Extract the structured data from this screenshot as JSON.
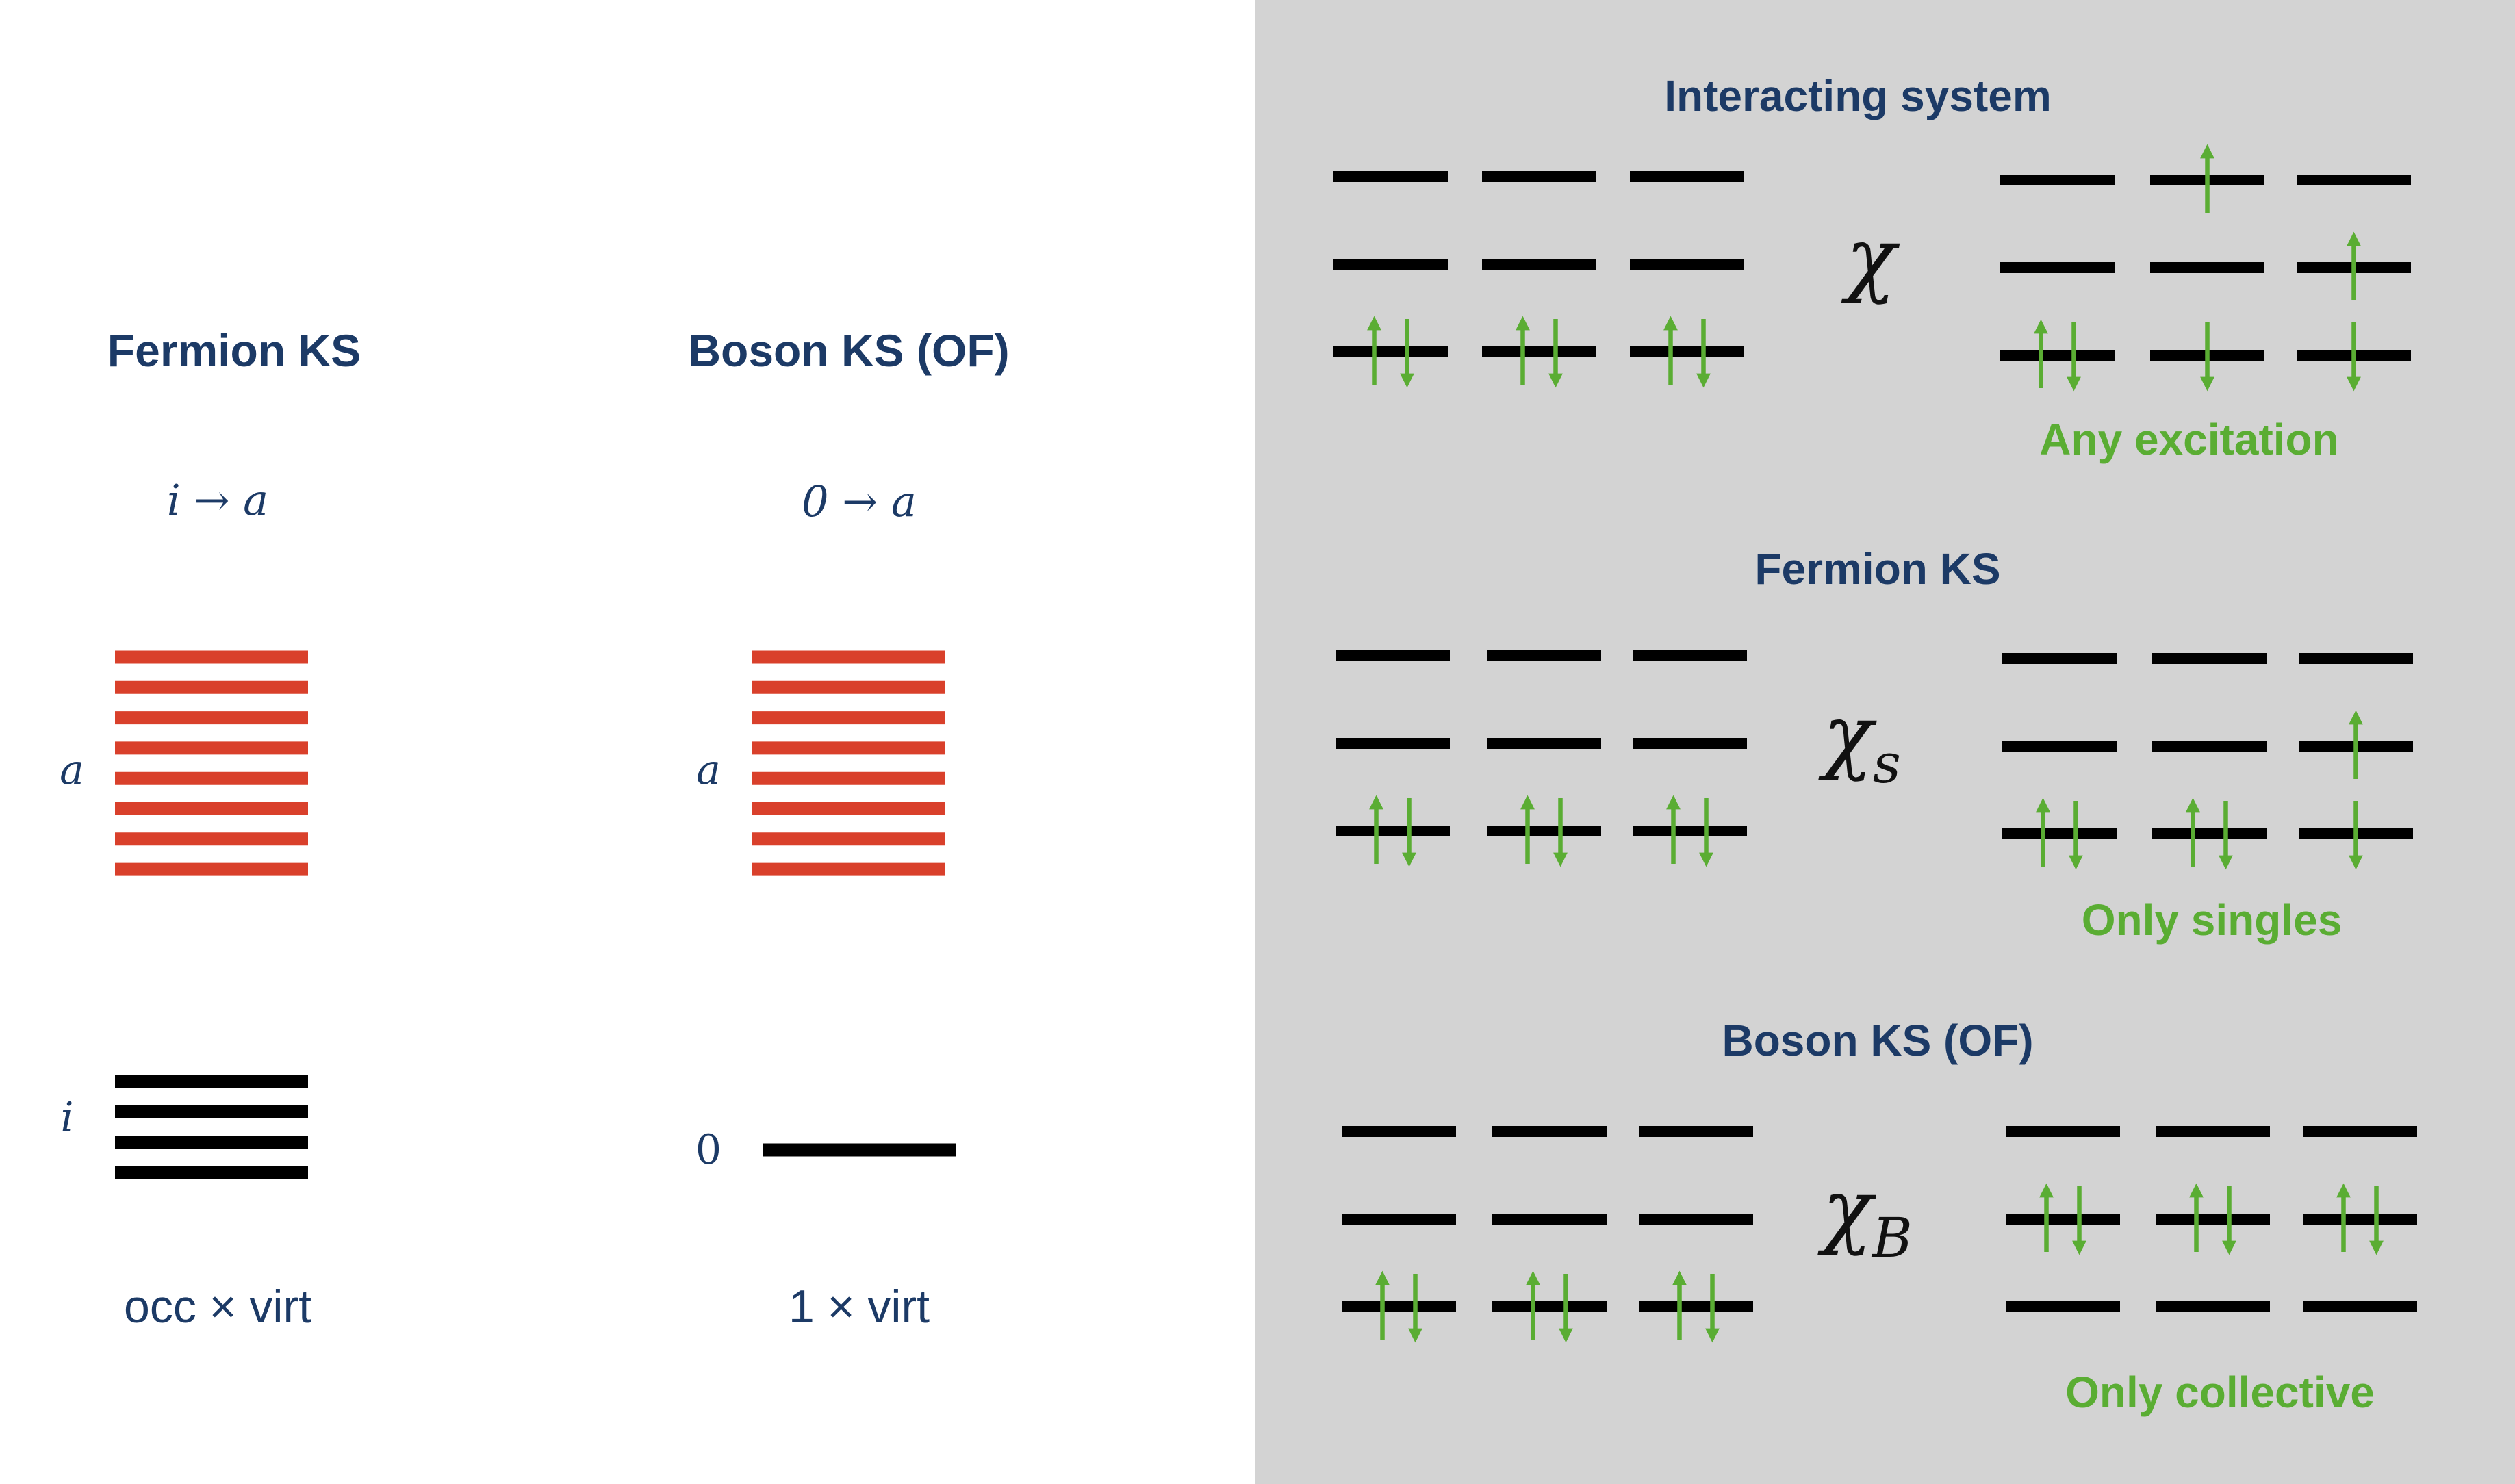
{
  "left": {
    "fermion": {
      "title": "Fermion KS",
      "transition": "i → a",
      "virtual_label": "a",
      "occupied_label": "i",
      "count": "occ × virt"
    },
    "boson": {
      "title": "Boson KS (OF)",
      "transition": "0 → a",
      "virtual_label": "a",
      "ground_label": "0",
      "count": "1 × virt"
    }
  },
  "right": {
    "interacting": {
      "title": "Interacting system",
      "chi": "χ",
      "chi_sub": "",
      "caption": "Any excitation"
    },
    "fermion": {
      "title": "Fermion KS",
      "chi": "χ",
      "chi_sub": "s",
      "caption": "Only singles"
    },
    "boson": {
      "title": "Boson KS (OF)",
      "chi": "χ",
      "chi_sub": "B",
      "caption": "Only collective"
    }
  },
  "colors": {
    "title": "#1c3a66",
    "virtual_levels": "#d9402b",
    "occupied_levels": "#000000",
    "electron_arrows": "#5aad33",
    "panel_background": "#d3d3d3"
  }
}
